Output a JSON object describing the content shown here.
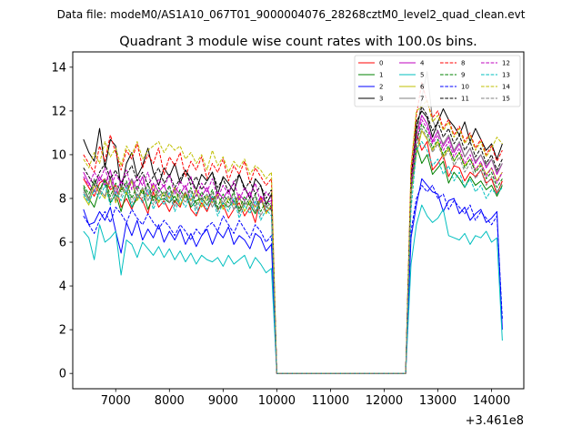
{
  "chart_data": {
    "type": "line",
    "suptitle": "Data file: modeM0/AS1A10_067T01_9000004076_28268cztM0_level2_quad_clean.evt",
    "title": "Quadrant 3 module wise count rates with 100.0s bins.",
    "xlabel": "",
    "ylabel": "",
    "offset_text": "+3.461e8",
    "xlim": [
      6200,
      14600
    ],
    "ylim": [
      -0.7,
      14.7
    ],
    "xticks": [
      7000,
      8000,
      9000,
      10000,
      11000,
      12000,
      13000,
      14000
    ],
    "xtick_labels": [
      "7000",
      "8000",
      "9000",
      "10000",
      "11000",
      "12000",
      "13000",
      "14000"
    ],
    "yticks": [
      0,
      2,
      4,
      6,
      8,
      10,
      12,
      14
    ],
    "ytick_labels": [
      "0",
      "2",
      "4",
      "6",
      "8",
      "10",
      "12",
      "14"
    ],
    "gaps": [
      {
        "from": 10000,
        "to": 12500,
        "value": 0
      }
    ],
    "segment1_x": [
      6400,
      6500,
      6600,
      6700,
      6800,
      6900,
      7000,
      7100,
      7200,
      7300,
      7400,
      7500,
      7600,
      7700,
      7800,
      7900,
      8000,
      8100,
      8200,
      8300,
      8400,
      8500,
      8600,
      8700,
      8800,
      8900,
      9000,
      9100,
      9200,
      9300,
      9400,
      9500,
      9600,
      9700,
      9800,
      9900
    ],
    "segment2_x": [
      12500,
      12600,
      12700,
      12800,
      12900,
      13000,
      13100,
      13200,
      13300,
      13400,
      13500,
      13600,
      13700,
      13800,
      13900,
      14000,
      14100,
      14200
    ],
    "legend": {
      "location": "upper right",
      "ncol": 4
    },
    "series": [
      {
        "name": "0",
        "color": "#ff0000",
        "dash": "solid",
        "seg1": [
          8.9,
          8.5,
          8.1,
          8.7,
          8.9,
          8.4,
          8.6,
          7.6,
          8.0,
          7.5,
          8.2,
          7.9,
          7.3,
          8.3,
          7.6,
          7.9,
          7.4,
          7.9,
          7.6,
          8.3,
          7.5,
          7.2,
          7.8,
          7.4,
          8.0,
          7.5,
          7.7,
          7.1,
          7.5,
          7.8,
          7.2,
          7.6,
          6.9,
          8.1,
          7.4,
          7.6
        ],
        "seg2": [
          9.0,
          11.0,
          10.2,
          10.6,
          9.3,
          9.6,
          10.0,
          9.0,
          9.5,
          9.4,
          8.8,
          9.2,
          9.0,
          9.3,
          8.7,
          8.9,
          8.2,
          8.8
        ]
      },
      {
        "name": "1",
        "color": "#008000",
        "dash": "solid",
        "seg1": [
          8.5,
          8.0,
          7.6,
          8.4,
          8.8,
          7.8,
          8.2,
          7.4,
          8.3,
          7.6,
          8.0,
          8.4,
          7.5,
          8.1,
          7.9,
          8.0,
          7.8,
          8.1,
          7.7,
          8.2,
          7.6,
          7.9,
          8.0,
          7.7,
          8.1,
          7.5,
          7.8,
          7.6,
          7.9,
          7.4,
          7.8,
          7.7,
          7.3,
          7.9,
          7.6,
          7.5
        ],
        "seg2": [
          8.4,
          10.4,
          9.6,
          10.0,
          9.1,
          9.4,
          9.7,
          8.7,
          9.2,
          8.9,
          8.5,
          9.0,
          8.6,
          8.8,
          8.4,
          8.6,
          8.1,
          8.6
        ]
      },
      {
        "name": "2",
        "color": "#0000ff",
        "dash": "solid",
        "seg1": [
          7.5,
          6.8,
          6.9,
          7.4,
          7.0,
          7.6,
          6.5,
          5.5,
          6.9,
          6.3,
          7.0,
          6.1,
          6.6,
          6.2,
          6.8,
          6.0,
          6.5,
          6.1,
          6.6,
          5.9,
          6.4,
          5.8,
          6.3,
          6.6,
          5.9,
          6.5,
          6.2,
          6.7,
          5.9,
          6.3,
          6.1,
          5.7,
          6.4,
          6.2,
          5.6,
          5.9
        ],
        "seg2": [
          6.2,
          7.7,
          8.9,
          8.6,
          8.3,
          8.2,
          7.4,
          7.9,
          8.0,
          7.3,
          7.6,
          7.0,
          7.3,
          7.5,
          6.9,
          7.1,
          7.4,
          2.0
        ]
      },
      {
        "name": "3",
        "color": "#000000",
        "dash": "solid",
        "seg1": [
          10.7,
          10.1,
          9.7,
          11.2,
          9.4,
          10.7,
          10.4,
          8.4,
          9.6,
          10.1,
          9.0,
          9.5,
          10.3,
          9.2,
          8.6,
          9.4,
          9.0,
          9.6,
          8.7,
          9.3,
          8.9,
          8.4,
          9.1,
          8.8,
          9.2,
          8.2,
          9.0,
          8.7,
          8.3,
          9.1,
          8.5,
          8.0,
          8.9,
          8.6,
          7.7,
          8.2
        ],
        "seg2": [
          8.1,
          11.5,
          12.0,
          11.7,
          10.8,
          11.5,
          12.1,
          11.6,
          11.3,
          10.9,
          11.5,
          10.6,
          11.2,
          10.7,
          10.2,
          10.5,
          9.8,
          10.5
        ]
      },
      {
        "name": "4",
        "color": "#bf00bf",
        "dash": "solid",
        "seg1": [
          9.2,
          8.7,
          8.3,
          9.0,
          8.6,
          9.3,
          8.2,
          8.8,
          8.5,
          8.9,
          8.4,
          9.0,
          8.1,
          8.7,
          8.3,
          8.6,
          8.0,
          8.5,
          8.2,
          8.6,
          7.9,
          8.4,
          8.1,
          8.5,
          7.8,
          8.3,
          8.0,
          8.4,
          7.7,
          8.2,
          7.9,
          8.3,
          7.6,
          8.1,
          7.8,
          7.9
        ],
        "seg2": [
          8.7,
          10.9,
          11.8,
          11.4,
          10.6,
          11.1,
          10.4,
          10.8,
          10.1,
          10.5,
          9.9,
          10.3,
          9.6,
          10.0,
          9.4,
          9.8,
          9.1,
          9.6
        ]
      },
      {
        "name": "5",
        "color": "#00bfbf",
        "dash": "solid",
        "seg1": [
          6.5,
          6.2,
          5.2,
          6.8,
          6.0,
          6.2,
          6.5,
          4.5,
          6.1,
          5.9,
          5.3,
          6.0,
          5.7,
          5.4,
          5.8,
          5.3,
          5.7,
          5.2,
          5.6,
          5.1,
          5.5,
          5.0,
          5.4,
          5.2,
          5.1,
          5.3,
          4.9,
          5.4,
          5.0,
          5.2,
          5.4,
          4.8,
          5.3,
          5.0,
          4.6,
          4.8
        ],
        "seg2": [
          5.0,
          6.8,
          7.7,
          7.2,
          6.9,
          7.1,
          7.5,
          6.3,
          6.2,
          6.1,
          6.4,
          5.9,
          6.3,
          6.2,
          6.5,
          6.0,
          6.2,
          1.5
        ]
      },
      {
        "name": "6",
        "color": "#bfbf00",
        "dash": "solid",
        "seg1": [
          8.1,
          7.7,
          8.6,
          8.3,
          8.0,
          8.9,
          7.8,
          8.5,
          8.2,
          8.8,
          7.9,
          8.4,
          8.1,
          8.6,
          7.8,
          8.3,
          8.0,
          8.5,
          7.7,
          8.2,
          7.9,
          8.4,
          7.6,
          8.1,
          7.8,
          8.2,
          7.5,
          8.0,
          7.7,
          8.1,
          7.4,
          7.9,
          7.6,
          8.0,
          7.3,
          7.7
        ],
        "seg2": [
          8.2,
          10.0,
          11.1,
          10.7,
          10.2,
          10.6,
          9.9,
          10.3,
          9.7,
          10.1,
          9.5,
          9.8,
          9.3,
          9.6,
          9.1,
          9.4,
          8.8,
          9.2
        ]
      },
      {
        "name": "7",
        "color": "#808080",
        "dash": "solid",
        "seg1": [
          8.3,
          7.9,
          8.9,
          8.4,
          8.1,
          9.0,
          7.9,
          8.6,
          8.3,
          8.9,
          8.0,
          8.5,
          7.9,
          8.4,
          8.1,
          8.3,
          7.8,
          8.4,
          8.0,
          8.3,
          7.7,
          8.2,
          7.9,
          8.2,
          7.6,
          8.1,
          7.8,
          8.1,
          7.5,
          8.0,
          7.7,
          8.0,
          7.4,
          7.9,
          7.6,
          7.8
        ],
        "seg2": [
          8.5,
          10.8,
          12.6,
          13.8,
          11.6,
          11.0,
          10.5,
          10.9,
          10.2,
          10.6,
          9.9,
          10.3,
          9.7,
          10.0,
          9.5,
          9.8,
          9.2,
          9.6
        ]
      },
      {
        "name": "8",
        "color": "#ff0000",
        "dash": "dashed",
        "seg1": [
          10.0,
          9.6,
          9.2,
          10.4,
          9.7,
          10.9,
          10.1,
          9.3,
          10.2,
          9.8,
          10.5,
          9.4,
          10.0,
          9.6,
          10.3,
          9.1,
          9.9,
          9.5,
          10.1,
          9.0,
          9.7,
          9.3,
          9.9,
          8.9,
          9.6,
          9.2,
          9.8,
          8.8,
          9.5,
          9.1,
          9.7,
          8.7,
          9.4,
          9.0,
          8.6,
          8.9
        ],
        "seg2": [
          9.3,
          11.8,
          13.3,
          12.4,
          11.7,
          12.0,
          11.2,
          11.6,
          10.9,
          11.3,
          10.6,
          11.0,
          10.3,
          10.7,
          10.0,
          10.4,
          9.7,
          10.2
        ]
      },
      {
        "name": "9",
        "color": "#008000",
        "dash": "dashed",
        "seg1": [
          8.6,
          8.2,
          8.8,
          8.4,
          8.9,
          8.1,
          8.7,
          8.3,
          8.8,
          8.0,
          8.6,
          8.2,
          8.7,
          7.9,
          8.5,
          8.1,
          8.6,
          7.8,
          8.4,
          8.0,
          8.5,
          7.7,
          8.3,
          7.9,
          8.4,
          7.6,
          8.2,
          7.8,
          8.3,
          7.5,
          8.1,
          7.7,
          8.2,
          7.4,
          7.9,
          7.6
        ],
        "seg2": [
          8.4,
          10.6,
          11.4,
          11.0,
          10.3,
          10.7,
          10.0,
          10.4,
          9.7,
          10.1,
          9.4,
          9.8,
          9.2,
          9.5,
          8.9,
          9.2,
          8.5,
          8.9
        ]
      },
      {
        "name": "10",
        "color": "#0000ff",
        "dash": "dashed",
        "seg1": [
          7.2,
          6.8,
          6.4,
          7.0,
          7.4,
          6.9,
          7.6,
          7.3,
          6.9,
          7.5,
          7.1,
          6.8,
          7.3,
          6.9,
          6.6,
          7.0,
          6.7,
          6.3,
          6.8,
          6.5,
          6.1,
          6.6,
          6.3,
          6.7,
          6.9,
          6.5,
          7.2,
          6.8,
          6.4,
          7.0,
          6.6,
          6.2,
          6.8,
          6.5,
          6.0,
          6.3
        ],
        "seg2": [
          6.5,
          8.0,
          8.6,
          8.3,
          8.6,
          8.0,
          8.2,
          7.5,
          7.9,
          7.6,
          7.3,
          7.7,
          7.0,
          7.4,
          7.1,
          6.8,
          7.2,
          2.5
        ]
      },
      {
        "name": "11",
        "color": "#000000",
        "dash": "dashed",
        "seg1": [
          9.4,
          9.0,
          8.6,
          9.2,
          9.6,
          8.9,
          9.3,
          8.7,
          9.1,
          9.5,
          8.8,
          9.2,
          8.6,
          9.0,
          9.4,
          8.7,
          9.1,
          8.5,
          8.9,
          9.3,
          8.6,
          9.0,
          8.4,
          8.8,
          9.2,
          8.5,
          8.9,
          8.3,
          8.7,
          9.1,
          8.4,
          8.8,
          8.2,
          8.6,
          8.0,
          8.4
        ],
        "seg2": [
          8.9,
          11.2,
          12.2,
          11.8,
          11.1,
          11.5,
          10.8,
          11.2,
          10.5,
          10.9,
          10.2,
          10.6,
          9.9,
          10.3,
          9.6,
          10.0,
          9.3,
          9.8
        ]
      },
      {
        "name": "12",
        "color": "#bf00bf",
        "dash": "dashed",
        "seg1": [
          9.0,
          8.6,
          9.2,
          8.8,
          9.4,
          8.5,
          9.1,
          8.7,
          9.3,
          8.4,
          9.0,
          8.6,
          9.2,
          8.3,
          8.9,
          8.5,
          9.1,
          8.2,
          8.8,
          8.4,
          9.0,
          8.1,
          8.7,
          8.3,
          8.9,
          8.0,
          8.6,
          8.2,
          8.8,
          7.9,
          8.5,
          8.1,
          8.7,
          7.8,
          8.3,
          8.0
        ],
        "seg2": [
          8.6,
          10.7,
          11.6,
          11.2,
          10.5,
          10.9,
          10.2,
          10.6,
          9.9,
          10.3,
          9.6,
          10.0,
          9.3,
          9.7,
          9.0,
          9.4,
          8.7,
          9.2
        ]
      },
      {
        "name": "13",
        "color": "#00bfbf",
        "dash": "dashed",
        "seg1": [
          8.2,
          7.8,
          8.4,
          8.0,
          8.6,
          7.7,
          8.3,
          7.9,
          8.5,
          7.6,
          8.2,
          7.8,
          8.4,
          7.5,
          8.1,
          7.7,
          8.3,
          7.4,
          8.0,
          7.6,
          8.2,
          7.3,
          7.9,
          7.5,
          8.1,
          7.2,
          7.8,
          7.4,
          8.0,
          7.1,
          7.7,
          7.3,
          7.9,
          7.0,
          7.5,
          7.2
        ],
        "seg2": [
          7.5,
          10.2,
          10.6,
          10.2,
          9.5,
          9.8,
          9.1,
          9.5,
          8.8,
          9.2,
          8.5,
          8.9,
          8.3,
          8.6,
          8.0,
          8.4,
          8.2,
          8.5
        ]
      },
      {
        "name": "14",
        "color": "#bfbf00",
        "dash": "dashed",
        "seg1": [
          9.8,
          9.4,
          10.1,
          9.6,
          10.6,
          9.9,
          10.3,
          9.5,
          10.4,
          10.0,
          10.6,
          9.8,
          10.2,
          10.4,
          10.6,
          10.1,
          10.5,
          10.2,
          10.4,
          9.8,
          10.1,
          9.6,
          10.0,
          9.3,
          10.2,
          9.5,
          9.9,
          9.2,
          9.7,
          9.4,
          9.8,
          9.1,
          9.5,
          9.3,
          8.9,
          9.2
        ],
        "seg2": [
          9.5,
          12.0,
          12.2,
          12.5,
          11.5,
          11.8,
          11.1,
          11.5,
          10.8,
          11.2,
          10.5,
          10.9,
          10.2,
          10.6,
          9.9,
          10.3,
          10.8,
          10.5
        ]
      },
      {
        "name": "15",
        "color": "#808080",
        "dash": "dashed",
        "seg1": [
          8.4,
          8.0,
          8.7,
          8.2,
          8.9,
          7.9,
          8.5,
          8.1,
          8.7,
          7.8,
          8.4,
          8.0,
          8.6,
          7.7,
          8.3,
          7.9,
          8.5,
          7.6,
          8.2,
          7.8,
          8.4,
          7.5,
          8.1,
          7.7,
          8.3,
          7.4,
          8.0,
          7.6,
          8.2,
          7.3,
          7.9,
          7.5,
          8.1,
          7.2,
          7.7,
          7.4
        ],
        "seg2": [
          8.2,
          10.3,
          11.2,
          10.8,
          10.1,
          10.5,
          9.8,
          10.2,
          9.5,
          9.9,
          9.2,
          9.6,
          8.9,
          9.3,
          8.6,
          9.0,
          8.3,
          8.7
        ]
      }
    ]
  }
}
